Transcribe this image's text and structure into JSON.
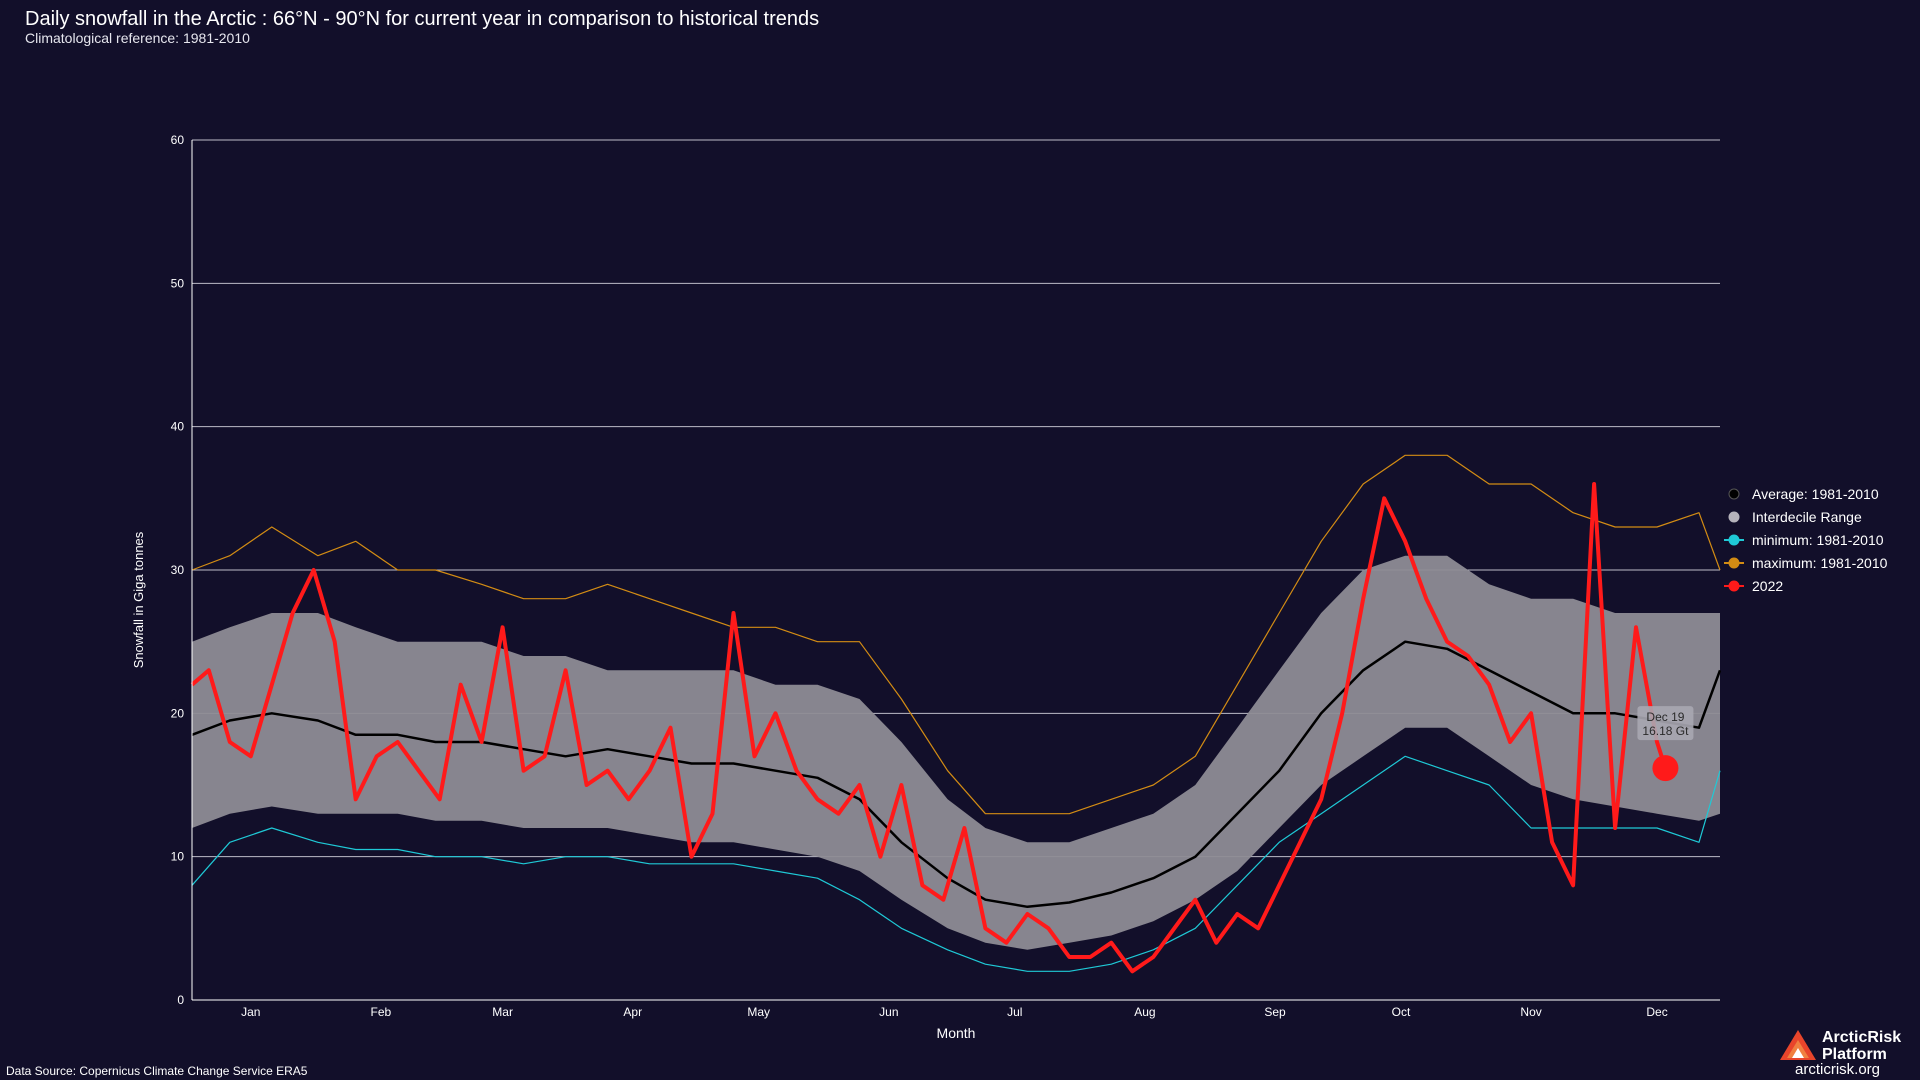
{
  "title": "Daily snowfall in the Arctic : 66°N - 90°N for current year in comparison to historical trends",
  "subtitle": "Climatological reference: 1981-2010",
  "source": "Data Source: Copernicus Climate Change Service ERA5",
  "brand": {
    "name": "ArcticRisk Platform",
    "url": "arcticrisk.org"
  },
  "colors": {
    "background": "#120f2a",
    "average": "#000000",
    "interdecile": "#8e8c95",
    "minimum": "#1fc9d6",
    "maximum": "#d38c14",
    "current": "#ff1a1a",
    "grid": "#bdbdc8"
  },
  "chart_data": {
    "type": "line",
    "xlabel": "Month",
    "ylabel": "Snowfall in Giga tonnes",
    "ylim": [
      0,
      60
    ],
    "yticks": [
      0,
      10,
      20,
      30,
      40,
      50,
      60
    ],
    "xlim": [
      1,
      365
    ],
    "month_ticks": [
      {
        "label": "Jan",
        "day": 15
      },
      {
        "label": "Feb",
        "day": 46
      },
      {
        "label": "Mar",
        "day": 75
      },
      {
        "label": "Apr",
        "day": 106
      },
      {
        "label": "May",
        "day": 136
      },
      {
        "label": "Jun",
        "day": 167
      },
      {
        "label": "Jul",
        "day": 197
      },
      {
        "label": "Aug",
        "day": 228
      },
      {
        "label": "Sep",
        "day": 259
      },
      {
        "label": "Oct",
        "day": 289
      },
      {
        "label": "Nov",
        "day": 320
      },
      {
        "label": "Dec",
        "day": 350
      }
    ],
    "legend_position": "right",
    "series": [
      {
        "name": "Average: 1981-2010",
        "kind": "line",
        "color": "#000000",
        "x": [
          1,
          10,
          20,
          31,
          40,
          50,
          59,
          70,
          80,
          90,
          100,
          110,
          120,
          130,
          140,
          150,
          160,
          170,
          181,
          190,
          200,
          210,
          220,
          230,
          240,
          250,
          260,
          270,
          280,
          290,
          300,
          310,
          320,
          330,
          340,
          350,
          360,
          365
        ],
        "y": [
          18.5,
          19.5,
          20,
          19.5,
          18.5,
          18.5,
          18,
          18,
          17.5,
          17,
          17.5,
          17,
          16.5,
          16.5,
          16,
          15.5,
          14,
          11,
          8.5,
          7,
          6.5,
          6.8,
          7.5,
          8.5,
          10,
          13,
          16,
          20,
          23,
          25,
          24.5,
          23,
          21.5,
          20,
          20,
          19.5,
          19,
          23
        ]
      },
      {
        "name": "Interdecile Range",
        "kind": "band",
        "color": "#8e8c95",
        "x": [
          1,
          10,
          20,
          31,
          40,
          50,
          59,
          70,
          80,
          90,
          100,
          110,
          120,
          130,
          140,
          150,
          160,
          170,
          181,
          190,
          200,
          210,
          220,
          230,
          240,
          250,
          260,
          270,
          280,
          290,
          300,
          310,
          320,
          330,
          340,
          350,
          360,
          365
        ],
        "low": [
          12,
          13,
          13.5,
          13,
          13,
          13,
          12.5,
          12.5,
          12,
          12,
          12,
          11.5,
          11,
          11,
          10.5,
          10,
          9,
          7,
          5,
          4,
          3.5,
          4,
          4.5,
          5.5,
          7,
          9,
          12,
          15,
          17,
          19,
          19,
          17,
          15,
          14,
          13.5,
          13,
          12.5,
          13
        ],
        "high": [
          25,
          26,
          27,
          27,
          26,
          25,
          25,
          25,
          24,
          24,
          23,
          23,
          23,
          23,
          22,
          22,
          21,
          18,
          14,
          12,
          11,
          11,
          12,
          13,
          15,
          19,
          23,
          27,
          30,
          31,
          31,
          29,
          28,
          28,
          27,
          27,
          27,
          27
        ]
      },
      {
        "name": "minimum: 1981-2010",
        "kind": "line",
        "color": "#1fc9d6",
        "x": [
          1,
          10,
          20,
          31,
          40,
          50,
          59,
          70,
          80,
          90,
          100,
          110,
          120,
          130,
          140,
          150,
          160,
          170,
          181,
          190,
          200,
          210,
          220,
          230,
          240,
          250,
          260,
          270,
          280,
          290,
          300,
          310,
          320,
          330,
          340,
          350,
          360,
          365
        ],
        "y": [
          8,
          11,
          12,
          11,
          10.5,
          10.5,
          10,
          10,
          9.5,
          10,
          10,
          9.5,
          9.5,
          9.5,
          9,
          8.5,
          7,
          5,
          3.5,
          2.5,
          2,
          2,
          2.5,
          3.5,
          5,
          8,
          11,
          13,
          15,
          17,
          16,
          15,
          12,
          12,
          12,
          12,
          11,
          16
        ]
      },
      {
        "name": "maximum: 1981-2010",
        "kind": "line",
        "color": "#d38c14",
        "x": [
          1,
          10,
          20,
          31,
          40,
          50,
          59,
          70,
          80,
          90,
          100,
          110,
          120,
          130,
          140,
          150,
          160,
          170,
          181,
          190,
          200,
          210,
          220,
          230,
          240,
          250,
          260,
          270,
          280,
          290,
          300,
          310,
          320,
          330,
          340,
          350,
          360,
          365
        ],
        "y": [
          30,
          31,
          33,
          31,
          32,
          30,
          30,
          29,
          28,
          28,
          29,
          28,
          27,
          26,
          26,
          25,
          25,
          21,
          16,
          13,
          13,
          13,
          14,
          15,
          17,
          22,
          27,
          32,
          36,
          38,
          38,
          36,
          36,
          34,
          33,
          33,
          34,
          30
        ]
      },
      {
        "name": "2022",
        "kind": "line",
        "color": "#ff1a1a",
        "x": [
          1,
          5,
          10,
          15,
          20,
          25,
          30,
          35,
          40,
          45,
          50,
          55,
          60,
          65,
          70,
          75,
          80,
          85,
          90,
          95,
          100,
          105,
          110,
          115,
          120,
          125,
          130,
          135,
          140,
          145,
          150,
          155,
          160,
          165,
          170,
          175,
          180,
          185,
          190,
          195,
          200,
          205,
          210,
          215,
          220,
          225,
          230,
          235,
          240,
          245,
          250,
          255,
          260,
          265,
          270,
          275,
          280,
          285,
          290,
          295,
          300,
          305,
          310,
          315,
          320,
          325,
          330,
          335,
          340,
          345,
          350,
          352
        ],
        "y": [
          22,
          23,
          18,
          17,
          22,
          27,
          30,
          25,
          14,
          17,
          18,
          16,
          14,
          22,
          18,
          26,
          16,
          17,
          23,
          15,
          16,
          14,
          16,
          19,
          10,
          13,
          27,
          17,
          20,
          16,
          14,
          13,
          15,
          10,
          15,
          8,
          7,
          12,
          5,
          4,
          6,
          5,
          3,
          3,
          4,
          2,
          3,
          5,
          7,
          4,
          6,
          5,
          8,
          11,
          14,
          20,
          28,
          35,
          32,
          28,
          25,
          24,
          22,
          18,
          20,
          11,
          8,
          36,
          12,
          26,
          18,
          16.18
        ]
      }
    ],
    "annotation": {
      "label": "Dec 19",
      "value": "16.18 Gt",
      "day": 352,
      "y": 16.18
    }
  }
}
